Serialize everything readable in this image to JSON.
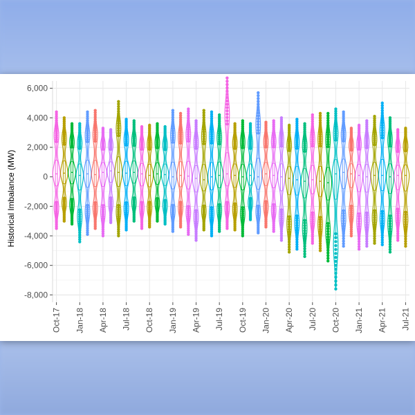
{
  "chart_data": {
    "type": "violin",
    "ylabel": "Historical Imbalance (MW)",
    "xlabel": "",
    "ylim": [
      -8500,
      6500
    ],
    "y_ticks": [
      -8000,
      -6000,
      -4000,
      -2000,
      0,
      2000,
      4000,
      6000
    ],
    "y_tick_labels": [
      "-8,000",
      "-6,000",
      "-4,000",
      "-2,000",
      "0",
      "2,000",
      "4,000",
      "6,000"
    ],
    "x_tick_labels": [
      "Oct-17",
      "Jan-18",
      "Apr-18",
      "Jul-18",
      "Oct-18",
      "Jan-19",
      "Apr-19",
      "Jul-19",
      "Oct-19",
      "Jan-20",
      "Apr-20",
      "Jul-20",
      "Oct-20",
      "Jan-21",
      "Apr-21",
      "Jul-21"
    ],
    "x_tick_month_index": [
      0,
      3,
      6,
      9,
      12,
      15,
      18,
      21,
      24,
      27,
      30,
      33,
      36,
      39,
      42,
      45
    ],
    "grid": true,
    "legend": "none",
    "colors": [
      "#f564e3",
      "#b79f00",
      "#00ba38",
      "#00bfc4",
      "#619cff",
      "#f8766d",
      "#e76bf3",
      "#c77cff",
      "#a3a500",
      "#00b0f6",
      "#00bf7d"
    ],
    "months": [
      {
        "month": "Oct-17",
        "min": -3500,
        "max": 4400,
        "median": 200
      },
      {
        "month": "Nov-17",
        "min": -3000,
        "max": 4000,
        "median": 250
      },
      {
        "month": "Dec-17",
        "min": -3200,
        "max": 3600,
        "median": 300
      },
      {
        "month": "Jan-18",
        "min": -4400,
        "max": 3600,
        "median": 100
      },
      {
        "month": "Feb-18",
        "min": -3900,
        "max": 4400,
        "median": 200
      },
      {
        "month": "Mar-18",
        "min": -3500,
        "max": 4500,
        "median": 150
      },
      {
        "month": "Apr-18",
        "min": -4000,
        "max": 3300,
        "median": 300
      },
      {
        "month": "May-18",
        "min": -3100,
        "max": 3200,
        "median": 400
      },
      {
        "month": "Jun-18",
        "min": -4000,
        "max": 5100,
        "median": 300
      },
      {
        "month": "Jul-18",
        "min": -3600,
        "max": 3900,
        "median": 250
      },
      {
        "month": "Aug-18",
        "min": -3000,
        "max": 3800,
        "median": 300
      },
      {
        "month": "Sep-18",
        "min": -3500,
        "max": 3400,
        "median": 200
      },
      {
        "month": "Oct-18",
        "min": -3400,
        "max": 3500,
        "median": 100
      },
      {
        "month": "Nov-18",
        "min": -3000,
        "max": 3600,
        "median": 200
      },
      {
        "month": "Dec-18",
        "min": -3200,
        "max": 3400,
        "median": 150
      },
      {
        "month": "Jan-19",
        "min": -3700,
        "max": 4500,
        "median": 0
      },
      {
        "month": "Feb-19",
        "min": -3400,
        "max": 4300,
        "median": 100
      },
      {
        "month": "Mar-19",
        "min": -3900,
        "max": 4600,
        "median": 50
      },
      {
        "month": "Apr-19",
        "min": -4300,
        "max": 3800,
        "median": -100
      },
      {
        "month": "May-19",
        "min": -3600,
        "max": 4500,
        "median": -200
      },
      {
        "month": "Jun-19",
        "min": -4000,
        "max": 4400,
        "median": 0
      },
      {
        "month": "Jul-19",
        "min": -3700,
        "max": 4200,
        "median": 100
      },
      {
        "month": "Aug-19",
        "min": -3500,
        "max": 6700,
        "median": 200
      },
      {
        "month": "Sep-19",
        "min": -3600,
        "max": 3600,
        "median": 100
      },
      {
        "month": "Oct-19",
        "min": -4000,
        "max": 3800,
        "median": 0
      },
      {
        "month": "Nov-19",
        "min": -2900,
        "max": 3600,
        "median": 100
      },
      {
        "month": "Dec-19",
        "min": -3800,
        "max": 5700,
        "median": 0
      },
      {
        "month": "Jan-20",
        "min": -3400,
        "max": 3700,
        "median": 200
      },
      {
        "month": "Feb-20",
        "min": -3700,
        "max": 3800,
        "median": 100
      },
      {
        "month": "Mar-20",
        "min": -4300,
        "max": 4000,
        "median": 0
      },
      {
        "month": "Apr-20",
        "min": -5100,
        "max": 3500,
        "median": -100
      },
      {
        "month": "May-20",
        "min": -4900,
        "max": 3900,
        "median": -200
      },
      {
        "month": "Jun-20",
        "min": -5400,
        "max": 3600,
        "median": -300
      },
      {
        "month": "Jul-20",
        "min": -4500,
        "max": 4200,
        "median": -200
      },
      {
        "month": "Aug-20",
        "min": -5000,
        "max": 4300,
        "median": -300
      },
      {
        "month": "Sep-20",
        "min": -5700,
        "max": 4300,
        "median": -400
      },
      {
        "month": "Oct-20",
        "min": -7600,
        "max": 4600,
        "median": 200
      },
      {
        "month": "Nov-20",
        "min": -4700,
        "max": 4400,
        "median": 300
      },
      {
        "month": "Dec-20",
        "min": -4000,
        "max": 3300,
        "median": 200
      },
      {
        "month": "Jan-21",
        "min": -4900,
        "max": 3500,
        "median": 100
      },
      {
        "month": "Feb-21",
        "min": -4700,
        "max": 3800,
        "median": 0
      },
      {
        "month": "Mar-21",
        "min": -4500,
        "max": 4100,
        "median": 100
      },
      {
        "month": "Apr-21",
        "min": -4600,
        "max": 5000,
        "median": 100
      },
      {
        "month": "May-21",
        "min": -5100,
        "max": 4000,
        "median": 0
      },
      {
        "month": "Jun-21",
        "min": -4300,
        "max": 3200,
        "median": 100
      },
      {
        "month": "Jul-21",
        "min": -4700,
        "max": 3300,
        "median": 100
      }
    ]
  }
}
